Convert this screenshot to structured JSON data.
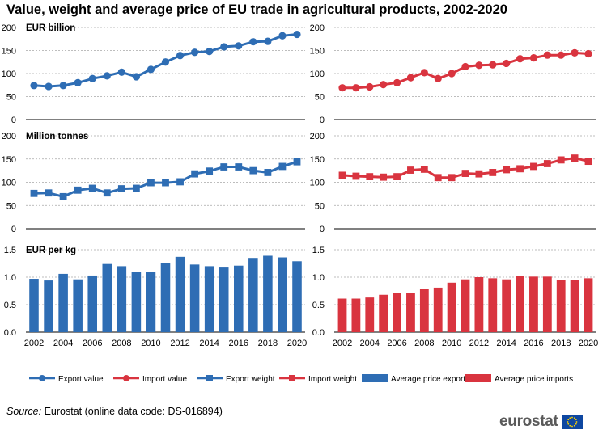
{
  "title": "Value, weight and average price of EU trade in agricultural products, 2002-2020",
  "source_label": "Source:",
  "source_text": "Eurostat (online data code: DS-016894)",
  "logo_text": "eurostat",
  "colors": {
    "export": "#2e6db4",
    "import": "#d9343f",
    "grid": "#a8a8a8"
  },
  "chart_data": [
    {
      "type": "line",
      "panel": "value-export",
      "subtitle": "EUR billion",
      "series_name": "Export value",
      "years": [
        2002,
        2003,
        2004,
        2005,
        2006,
        2007,
        2008,
        2009,
        2010,
        2011,
        2012,
        2013,
        2014,
        2015,
        2016,
        2017,
        2018,
        2019,
        2020
      ],
      "values": [
        74,
        72,
        74,
        80,
        89,
        95,
        103,
        93,
        109,
        125,
        139,
        146,
        148,
        158,
        160,
        169,
        170,
        182,
        185
      ],
      "ylim": [
        0,
        200
      ],
      "yticks": [
        0,
        50,
        100,
        150,
        200
      ],
      "marker": "circle"
    },
    {
      "type": "line",
      "panel": "value-import",
      "subtitle": "",
      "series_name": "Import value",
      "years": [
        2002,
        2003,
        2004,
        2005,
        2006,
        2007,
        2008,
        2009,
        2010,
        2011,
        2012,
        2013,
        2014,
        2015,
        2016,
        2017,
        2018,
        2019,
        2020
      ],
      "values": [
        69,
        69,
        71,
        76,
        80,
        91,
        102,
        89,
        100,
        115,
        118,
        119,
        122,
        132,
        134,
        140,
        140,
        145,
        143
      ],
      "ylim": [
        0,
        200
      ],
      "yticks": [
        0,
        50,
        100,
        150,
        200
      ],
      "marker": "circle"
    },
    {
      "type": "line",
      "panel": "weight-export",
      "subtitle": "Million tonnes",
      "series_name": "Export weight",
      "years": [
        2002,
        2003,
        2004,
        2005,
        2006,
        2007,
        2008,
        2009,
        2010,
        2011,
        2012,
        2013,
        2014,
        2015,
        2016,
        2017,
        2018,
        2019,
        2020
      ],
      "values": [
        76,
        77,
        69,
        83,
        87,
        77,
        86,
        87,
        99,
        99,
        101,
        118,
        124,
        133,
        133,
        125,
        121,
        134,
        144
      ],
      "ylim": [
        0,
        200
      ],
      "yticks": [
        0,
        50,
        100,
        150,
        200
      ],
      "marker": "square"
    },
    {
      "type": "line",
      "panel": "weight-import",
      "subtitle": "",
      "series_name": "Import weight",
      "years": [
        2002,
        2003,
        2004,
        2005,
        2006,
        2007,
        2008,
        2009,
        2010,
        2011,
        2012,
        2013,
        2014,
        2015,
        2016,
        2017,
        2018,
        2019,
        2020
      ],
      "values": [
        115,
        113,
        112,
        111,
        112,
        126,
        128,
        110,
        110,
        119,
        118,
        121,
        127,
        129,
        134,
        140,
        148,
        152,
        145
      ],
      "ylim": [
        0,
        200
      ],
      "yticks": [
        0,
        50,
        100,
        150,
        200
      ],
      "marker": "square"
    },
    {
      "type": "bar",
      "panel": "price-export",
      "subtitle": "EUR per kg",
      "series_name": "Average price exports",
      "years": [
        2002,
        2003,
        2004,
        2005,
        2006,
        2007,
        2008,
        2009,
        2010,
        2011,
        2012,
        2013,
        2014,
        2015,
        2016,
        2017,
        2018,
        2019,
        2020
      ],
      "values": [
        0.97,
        0.94,
        1.06,
        0.96,
        1.03,
        1.24,
        1.2,
        1.09,
        1.1,
        1.26,
        1.37,
        1.23,
        1.2,
        1.19,
        1.21,
        1.35,
        1.39,
        1.36,
        1.29
      ],
      "ylim": [
        0,
        1.5
      ],
      "yticks": [
        0.0,
        0.5,
        1.0,
        1.5
      ]
    },
    {
      "type": "bar",
      "panel": "price-import",
      "subtitle": "",
      "series_name": "Average price imports",
      "years": [
        2002,
        2003,
        2004,
        2005,
        2006,
        2007,
        2008,
        2009,
        2010,
        2011,
        2012,
        2013,
        2014,
        2015,
        2016,
        2017,
        2018,
        2019,
        2020
      ],
      "values": [
        0.61,
        0.61,
        0.63,
        0.68,
        0.71,
        0.72,
        0.79,
        0.81,
        0.9,
        0.96,
        1.0,
        0.98,
        0.96,
        1.02,
        1.01,
        1.01,
        0.95,
        0.95,
        0.98
      ],
      "ylim": [
        0,
        1.5
      ],
      "yticks": [
        0.0,
        0.5,
        1.0,
        1.5
      ]
    }
  ],
  "x_tick_labels": [
    "2002",
    "2004",
    "2006",
    "2008",
    "2010",
    "2012",
    "2014",
    "2016",
    "2018",
    "2020"
  ],
  "legend": [
    {
      "label": "Export value",
      "kind": "line-circle",
      "color": "#2e6db4"
    },
    {
      "label": "Import value",
      "kind": "line-circle",
      "color": "#d9343f"
    },
    {
      "label": "Export weight",
      "kind": "line-square",
      "color": "#2e6db4"
    },
    {
      "label": "Import weight",
      "kind": "line-square",
      "color": "#d9343f"
    },
    {
      "label": "Average price exports",
      "kind": "bar",
      "color": "#2e6db4"
    },
    {
      "label": "Average price imports",
      "kind": "bar",
      "color": "#d9343f"
    }
  ]
}
